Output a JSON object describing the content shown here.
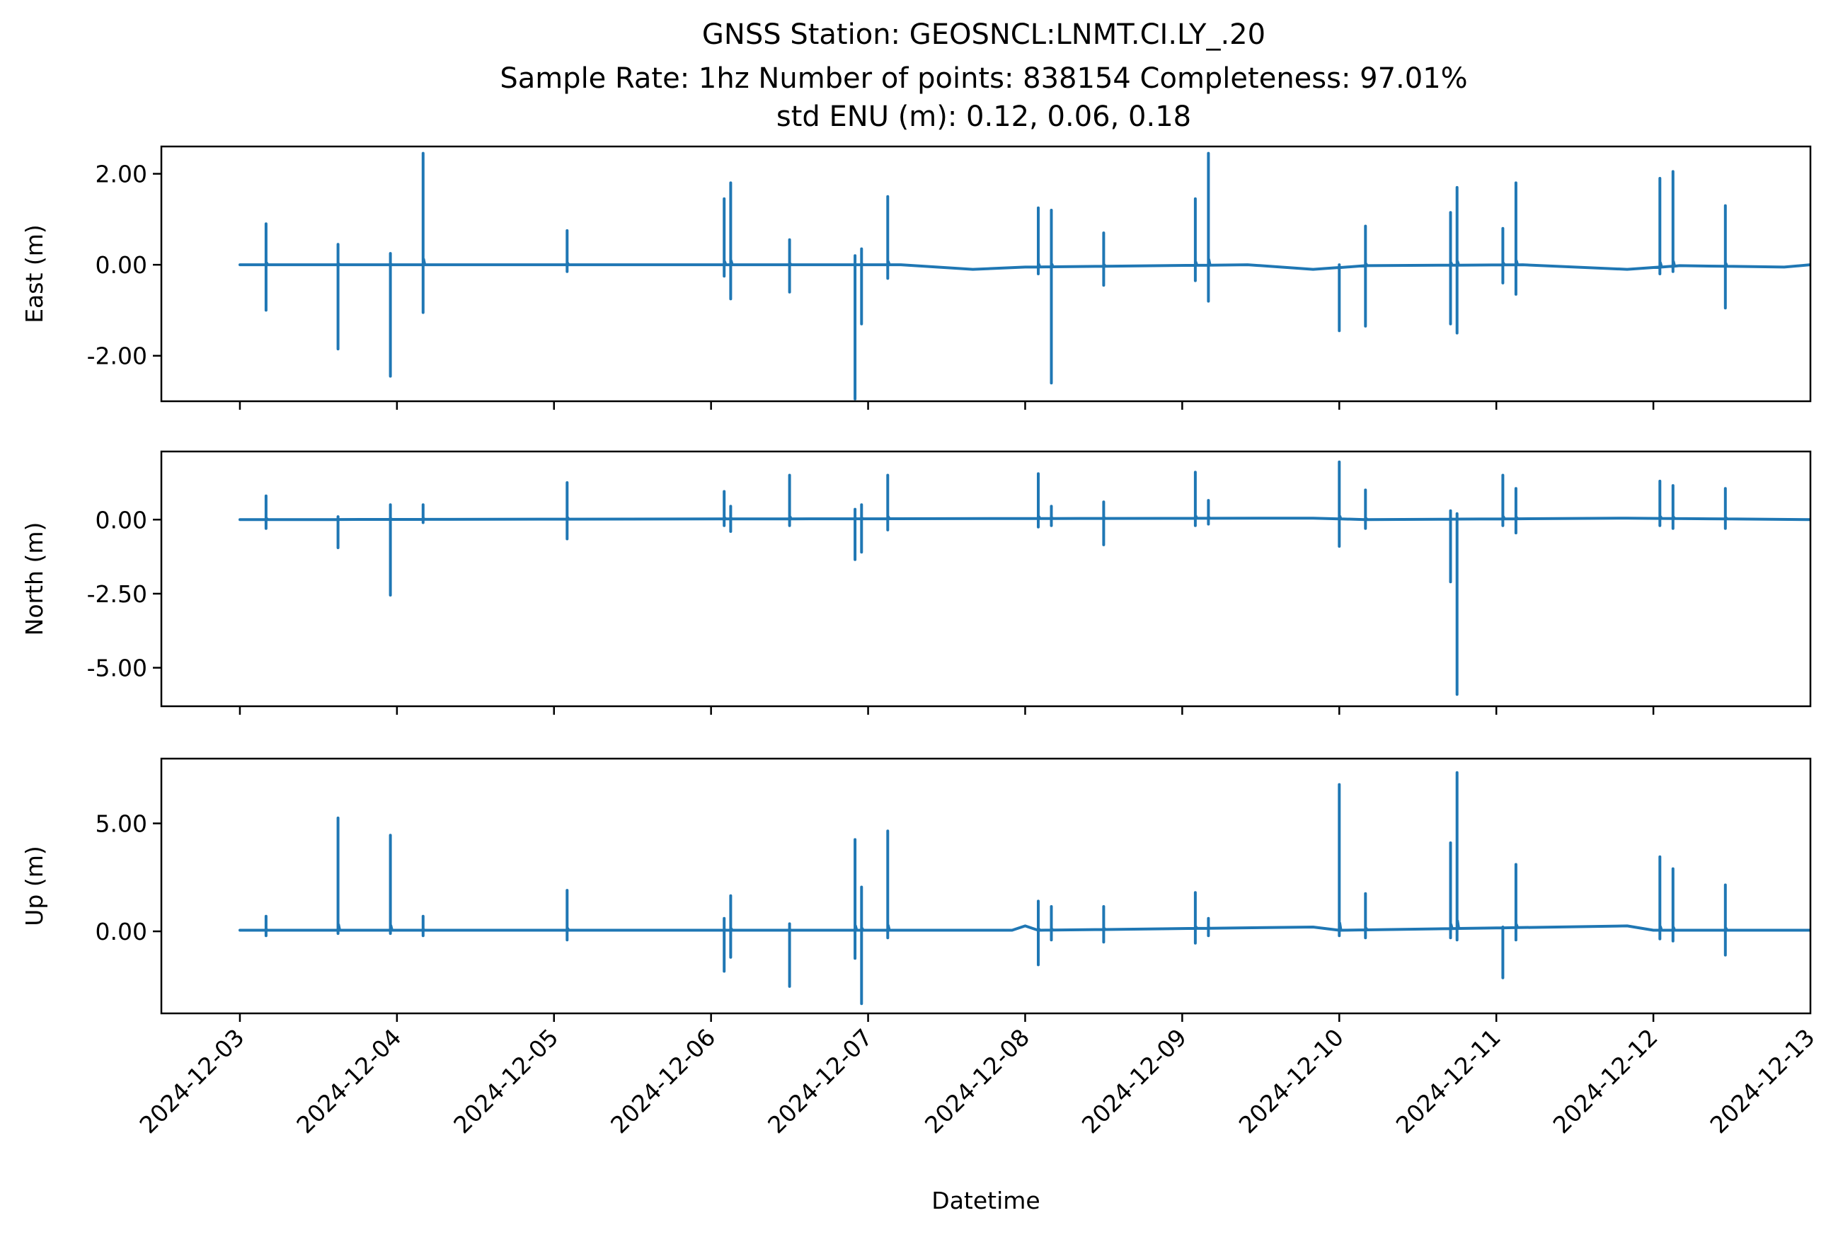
{
  "figure": {
    "title_lines": [
      "GNSS Station: GEOSNCL:LNMT.CI.LY_.20",
      "Sample Rate: 1hz   Number of points: 838154    Completeness:  97.01%",
      "std ENU (m):  0.12, 0.06, 0.18"
    ]
  },
  "chart_data": [
    {
      "type": "line",
      "ylabel": "East (m)",
      "xlabel": "",
      "xlim": [
        "2024-12-02 12:00",
        "2024-12-13 00:00"
      ],
      "ylim": [
        -3.0,
        2.6
      ],
      "yticks": [
        2.0,
        0.0,
        -2.0
      ],
      "ytick_labels": [
        "2.00",
        "0.00",
        "-2.00"
      ],
      "show_x_tick_labels": false,
      "grid": false,
      "color": "#1f77b4",
      "baseline": [
        [
          "2024-12-03 00:00",
          0.0
        ],
        [
          "2024-12-07 05:00",
          0.0
        ],
        [
          "2024-12-07 16:00",
          -0.1
        ],
        [
          "2024-12-08 00:00",
          -0.05
        ],
        [
          "2024-12-09 10:00",
          0.0
        ],
        [
          "2024-12-09 20:00",
          -0.1
        ],
        [
          "2024-12-10 04:00",
          -0.02
        ],
        [
          "2024-12-11 04:00",
          0.0
        ],
        [
          "2024-12-11 20:00",
          -0.1
        ],
        [
          "2024-12-12 04:00",
          -0.02
        ],
        [
          "2024-12-12 20:00",
          -0.05
        ],
        [
          "2024-12-12 23:59",
          0.0
        ]
      ],
      "spikes": [
        {
          "t": "2024-12-03 04:00",
          "hi": 0.9,
          "lo": -1.0
        },
        {
          "t": "2024-12-03 15:00",
          "hi": 0.45,
          "lo": -1.85
        },
        {
          "t": "2024-12-03 23:00",
          "hi": 0.25,
          "lo": -2.45
        },
        {
          "t": "2024-12-04 04:00",
          "hi": 2.45,
          "lo": -1.05
        },
        {
          "t": "2024-12-05 02:00",
          "hi": 0.75,
          "lo": -0.15
        },
        {
          "t": "2024-12-06 02:00",
          "hi": 1.45,
          "lo": -0.25
        },
        {
          "t": "2024-12-06 03:00",
          "hi": 1.8,
          "lo": -0.75
        },
        {
          "t": "2024-12-06 12:00",
          "hi": 0.55,
          "lo": -0.6
        },
        {
          "t": "2024-12-06 22:00",
          "hi": 0.2,
          "lo": -2.95
        },
        {
          "t": "2024-12-06 23:00",
          "hi": 0.35,
          "lo": -1.3
        },
        {
          "t": "2024-12-07 03:00",
          "hi": 1.5,
          "lo": -0.3
        },
        {
          "t": "2024-12-08 02:00",
          "hi": 1.25,
          "lo": -0.2
        },
        {
          "t": "2024-12-08 04:00",
          "hi": 1.2,
          "lo": -2.6
        },
        {
          "t": "2024-12-08 12:00",
          "hi": 0.7,
          "lo": -0.45
        },
        {
          "t": "2024-12-09 02:00",
          "hi": 1.45,
          "lo": -0.35
        },
        {
          "t": "2024-12-09 04:00",
          "hi": 2.45,
          "lo": -0.8
        },
        {
          "t": "2024-12-10 00:00",
          "hi": 0.0,
          "lo": -1.45
        },
        {
          "t": "2024-12-10 04:00",
          "hi": 0.85,
          "lo": -1.35
        },
        {
          "t": "2024-12-10 17:00",
          "hi": 1.15,
          "lo": -1.3
        },
        {
          "t": "2024-12-10 18:00",
          "hi": 1.7,
          "lo": -1.5
        },
        {
          "t": "2024-12-11 01:00",
          "hi": 0.8,
          "lo": -0.4
        },
        {
          "t": "2024-12-11 03:00",
          "hi": 1.8,
          "lo": -0.65
        },
        {
          "t": "2024-12-12 01:00",
          "hi": 1.9,
          "lo": -0.2
        },
        {
          "t": "2024-12-12 03:00",
          "hi": 2.05,
          "lo": -0.15
        },
        {
          "t": "2024-12-12 11:00",
          "hi": 1.3,
          "lo": -0.95
        }
      ]
    },
    {
      "type": "line",
      "ylabel": "North (m)",
      "xlabel": "",
      "xlim": [
        "2024-12-02 12:00",
        "2024-12-13 00:00"
      ],
      "ylim": [
        -6.3,
        2.3
      ],
      "yticks": [
        0.0,
        -2.5,
        -5.0
      ],
      "ytick_labels": [
        "0.00",
        "-2.50",
        "-5.00"
      ],
      "show_x_tick_labels": false,
      "grid": false,
      "color": "#1f77b4",
      "baseline": [
        [
          "2024-12-03 00:00",
          0.0
        ],
        [
          "2024-12-09 20:00",
          0.05
        ],
        [
          "2024-12-10 04:00",
          0.0
        ],
        [
          "2024-12-11 20:00",
          0.05
        ],
        [
          "2024-12-12 23:59",
          0.0
        ]
      ],
      "spikes": [
        {
          "t": "2024-12-03 04:00",
          "hi": 0.8,
          "lo": -0.3
        },
        {
          "t": "2024-12-03 15:00",
          "hi": 0.1,
          "lo": -0.95
        },
        {
          "t": "2024-12-03 23:00",
          "hi": 0.5,
          "lo": -2.55
        },
        {
          "t": "2024-12-04 04:00",
          "hi": 0.5,
          "lo": -0.1
        },
        {
          "t": "2024-12-05 02:00",
          "hi": 1.25,
          "lo": -0.65
        },
        {
          "t": "2024-12-06 02:00",
          "hi": 0.95,
          "lo": -0.2
        },
        {
          "t": "2024-12-06 03:00",
          "hi": 0.45,
          "lo": -0.4
        },
        {
          "t": "2024-12-06 12:00",
          "hi": 1.5,
          "lo": -0.2
        },
        {
          "t": "2024-12-06 22:00",
          "hi": 0.35,
          "lo": -1.35
        },
        {
          "t": "2024-12-06 23:00",
          "hi": 0.5,
          "lo": -1.1
        },
        {
          "t": "2024-12-07 03:00",
          "hi": 1.5,
          "lo": -0.35
        },
        {
          "t": "2024-12-08 02:00",
          "hi": 1.55,
          "lo": -0.25
        },
        {
          "t": "2024-12-08 04:00",
          "hi": 0.45,
          "lo": -0.2
        },
        {
          "t": "2024-12-08 12:00",
          "hi": 0.6,
          "lo": -0.85
        },
        {
          "t": "2024-12-09 02:00",
          "hi": 1.6,
          "lo": -0.2
        },
        {
          "t": "2024-12-09 04:00",
          "hi": 0.65,
          "lo": -0.15
        },
        {
          "t": "2024-12-10 00:00",
          "hi": 1.95,
          "lo": -0.9
        },
        {
          "t": "2024-12-10 04:00",
          "hi": 1.0,
          "lo": -0.3
        },
        {
          "t": "2024-12-10 17:00",
          "hi": 0.3,
          "lo": -2.1
        },
        {
          "t": "2024-12-10 18:00",
          "hi": 0.2,
          "lo": -5.9
        },
        {
          "t": "2024-12-11 01:00",
          "hi": 1.5,
          "lo": -0.2
        },
        {
          "t": "2024-12-11 03:00",
          "hi": 1.05,
          "lo": -0.45
        },
        {
          "t": "2024-12-12 01:00",
          "hi": 1.3,
          "lo": -0.2
        },
        {
          "t": "2024-12-12 03:00",
          "hi": 1.15,
          "lo": -0.3
        },
        {
          "t": "2024-12-12 11:00",
          "hi": 1.05,
          "lo": -0.3
        }
      ]
    },
    {
      "type": "line",
      "ylabel": "Up (m)",
      "xlabel": "Datetime",
      "xlim": [
        "2024-12-02 12:00",
        "2024-12-13 00:00"
      ],
      "ylim": [
        -3.8,
        8.0
      ],
      "yticks": [
        5.0,
        0.0
      ],
      "ytick_labels": [
        "5.00",
        "0.00"
      ],
      "show_x_tick_labels": true,
      "xticks": [
        "2024-12-03",
        "2024-12-04",
        "2024-12-05",
        "2024-12-06",
        "2024-12-07",
        "2024-12-08",
        "2024-12-09",
        "2024-12-10",
        "2024-12-11",
        "2024-12-12",
        "2024-12-13"
      ],
      "grid": false,
      "color": "#1f77b4",
      "baseline": [
        [
          "2024-12-03 00:00",
          0.05
        ],
        [
          "2024-12-07 22:00",
          0.05
        ],
        [
          "2024-12-08 00:00",
          0.25
        ],
        [
          "2024-12-08 02:00",
          0.05
        ],
        [
          "2024-12-09 20:00",
          0.2
        ],
        [
          "2024-12-10 00:00",
          0.05
        ],
        [
          "2024-12-11 20:00",
          0.25
        ],
        [
          "2024-12-12 00:00",
          0.05
        ],
        [
          "2024-12-12 23:59",
          0.05
        ]
      ],
      "spikes": [
        {
          "t": "2024-12-03 04:00",
          "hi": 0.7,
          "lo": -0.2
        },
        {
          "t": "2024-12-03 15:00",
          "hi": 5.25,
          "lo": -0.1
        },
        {
          "t": "2024-12-03 23:00",
          "hi": 4.45,
          "lo": -0.1
        },
        {
          "t": "2024-12-04 04:00",
          "hi": 0.7,
          "lo": -0.2
        },
        {
          "t": "2024-12-05 02:00",
          "hi": 1.9,
          "lo": -0.4
        },
        {
          "t": "2024-12-06 02:00",
          "hi": 0.6,
          "lo": -1.85
        },
        {
          "t": "2024-12-06 03:00",
          "hi": 1.65,
          "lo": -1.2
        },
        {
          "t": "2024-12-06 12:00",
          "hi": 0.35,
          "lo": -2.55
        },
        {
          "t": "2024-12-06 22:00",
          "hi": 4.25,
          "lo": -1.25
        },
        {
          "t": "2024-12-06 23:00",
          "hi": 2.05,
          "lo": -3.35
        },
        {
          "t": "2024-12-07 03:00",
          "hi": 4.65,
          "lo": -0.3
        },
        {
          "t": "2024-12-08 02:00",
          "hi": 1.4,
          "lo": -1.55
        },
        {
          "t": "2024-12-08 04:00",
          "hi": 1.15,
          "lo": -0.4
        },
        {
          "t": "2024-12-08 12:00",
          "hi": 1.15,
          "lo": -0.5
        },
        {
          "t": "2024-12-09 02:00",
          "hi": 1.8,
          "lo": -0.55
        },
        {
          "t": "2024-12-09 04:00",
          "hi": 0.6,
          "lo": -0.2
        },
        {
          "t": "2024-12-10 00:00",
          "hi": 6.8,
          "lo": -0.2
        },
        {
          "t": "2024-12-10 04:00",
          "hi": 1.75,
          "lo": -0.3
        },
        {
          "t": "2024-12-10 17:00",
          "hi": 4.1,
          "lo": -0.3
        },
        {
          "t": "2024-12-10 18:00",
          "hi": 7.35,
          "lo": -0.4
        },
        {
          "t": "2024-12-11 01:00",
          "hi": 0.2,
          "lo": -2.15
        },
        {
          "t": "2024-12-11 03:00",
          "hi": 3.1,
          "lo": -0.4
        },
        {
          "t": "2024-12-12 01:00",
          "hi": 3.45,
          "lo": -0.35
        },
        {
          "t": "2024-12-12 03:00",
          "hi": 2.9,
          "lo": -0.45
        },
        {
          "t": "2024-12-12 11:00",
          "hi": 2.15,
          "lo": -1.1
        }
      ]
    }
  ]
}
